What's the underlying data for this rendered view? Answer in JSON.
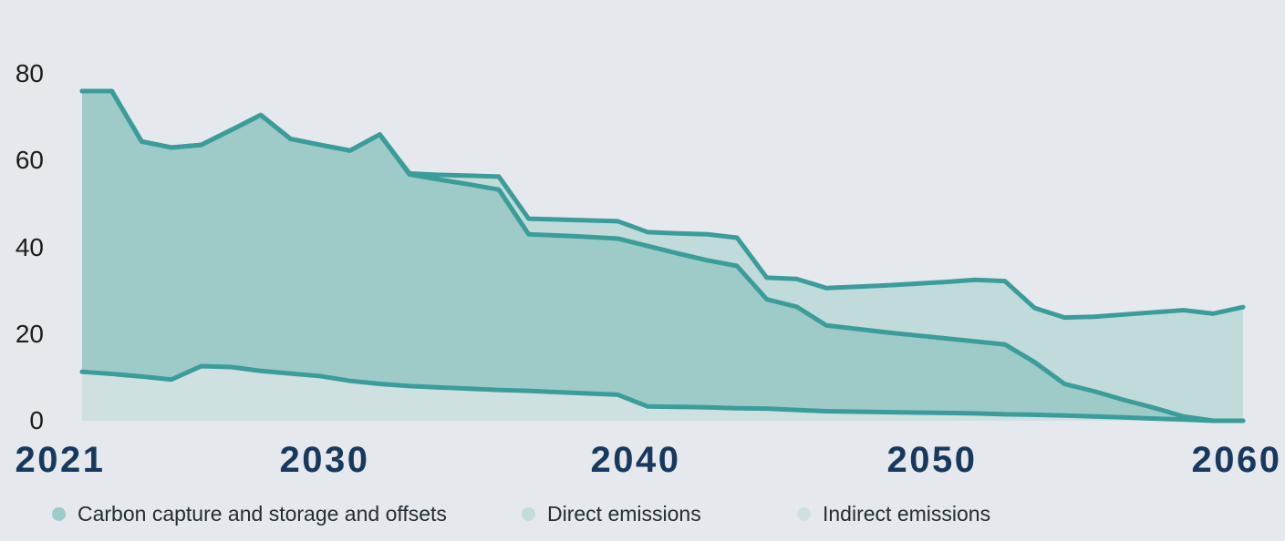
{
  "page": {
    "background_color": "#e5e8ec",
    "title": ""
  },
  "chart_data": {
    "type": "area",
    "title": "",
    "xlabel": "",
    "ylabel": "",
    "ylim": [
      0,
      80
    ],
    "grid": false,
    "legend_position": "bottom",
    "line_color": "#3a9d9a",
    "years": [
      2021,
      2022,
      2023,
      2024,
      2025,
      2026,
      2027,
      2028,
      2029,
      2030,
      2031,
      2032,
      2033,
      2034,
      2035,
      2036,
      2037,
      2038,
      2039,
      2040,
      2041,
      2042,
      2043,
      2044,
      2045,
      2046,
      2047,
      2048,
      2049,
      2050,
      2051,
      2052,
      2053,
      2054,
      2055,
      2056,
      2057,
      2058,
      2059,
      2060
    ],
    "x_tick_labels": [
      "2021",
      "2030",
      "2040",
      "2050",
      "2060"
    ],
    "y_ticks": [
      80,
      60,
      40,
      20,
      0
    ],
    "series_note": "Overlapping areas drawn from zero in this paint order; each boundary line stroked in line_color.",
    "series": [
      {
        "id": "direct-emissions",
        "name": "Direct emissions",
        "boundary": "top",
        "color": "#c0dbd9",
        "values": [
          76,
          76,
          64.4,
          63,
          63.6,
          67,
          70.5,
          65,
          63.6,
          62.3,
          66,
          57,
          56.7,
          56.5,
          56.3,
          46.6,
          46.4,
          46.2,
          46,
          43.5,
          43.2,
          43,
          42.2,
          33,
          32.7,
          30.6,
          30.9,
          31.2,
          31.6,
          32,
          32.5,
          32.2,
          26,
          23.8,
          24,
          24.5,
          25,
          25.5,
          24.7,
          26.2
        ]
      },
      {
        "id": "ccs-offsets",
        "name": "Carbon capture and storage and offsets",
        "boundary": "middle",
        "color": "#9ecac8",
        "values": [
          76,
          76,
          64.4,
          63,
          63.6,
          67,
          70.5,
          65,
          63.6,
          62.3,
          66,
          56.8,
          55.6,
          54.5,
          53.3,
          43,
          42.7,
          42.4,
          42,
          40.3,
          38.6,
          37,
          35.7,
          28,
          26.3,
          22,
          21.2,
          20.4,
          19.7,
          19,
          18.3,
          17.6,
          13.5,
          8.5,
          6.8,
          4.8,
          3,
          1,
          0,
          0
        ]
      },
      {
        "id": "indirect-emissions",
        "name": "Indirect emissions",
        "boundary": "bottom",
        "color": "#cfe0e1",
        "values": [
          11.3,
          10.8,
          10.2,
          9.5,
          12.6,
          12.4,
          11.5,
          10.9,
          10.3,
          9.2,
          8.5,
          8,
          7.7,
          7.4,
          7.1,
          6.9,
          6.6,
          6.3,
          6,
          3.3,
          3.2,
          3.1,
          2.9,
          2.8,
          2.5,
          2.2,
          2.1,
          2,
          1.9,
          1.8,
          1.7,
          1.5,
          1.4,
          1.2,
          1,
          0.8,
          0.5,
          0.3,
          0,
          0
        ]
      }
    ]
  },
  "legend": {
    "items": [
      {
        "label": "Carbon capture and storage and offsets",
        "color": "#9ecac8"
      },
      {
        "label": "Direct emissions",
        "color": "#c1dcda"
      },
      {
        "label": "Indirect emissions",
        "color": "#d0e0e2"
      }
    ]
  }
}
